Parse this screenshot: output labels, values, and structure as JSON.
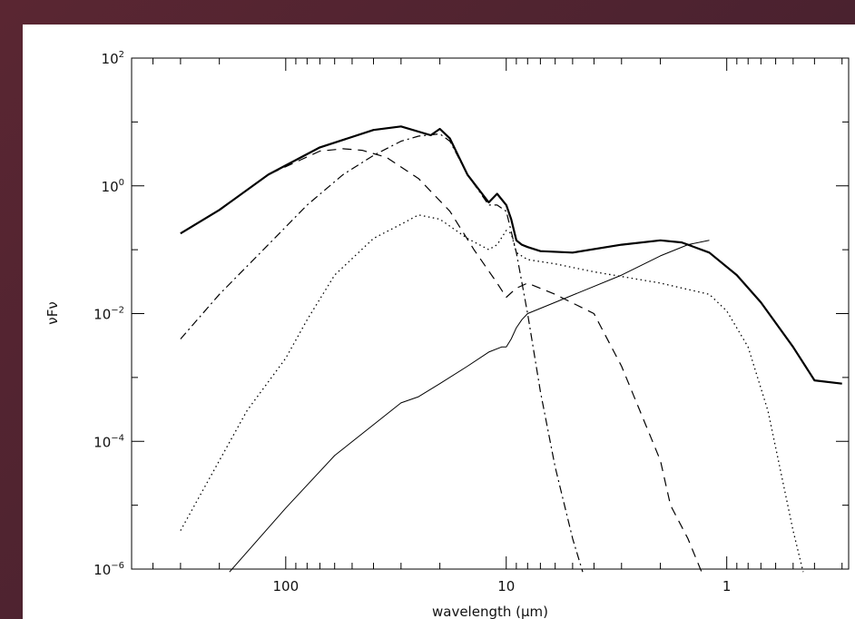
{
  "chart_data": {
    "type": "line",
    "xlabel": "wavelength (μm)",
    "ylabel": "νFν",
    "x_scale": "log",
    "y_scale": "log",
    "x_reversed": true,
    "xlim": [
      500,
      0.28
    ],
    "ylim": [
      1e-06,
      100
    ],
    "x_ticks": [
      {
        "value": 100,
        "label": "100"
      },
      {
        "value": 10,
        "label": "10"
      },
      {
        "value": 1,
        "label": "1"
      }
    ],
    "y_ticks": [
      {
        "value": 100,
        "base": "10",
        "exp": "2"
      },
      {
        "value": 1,
        "base": "10",
        "exp": "0"
      },
      {
        "value": 0.01,
        "base": "10",
        "exp": "−2"
      },
      {
        "value": 0.0001,
        "base": "10",
        "exp": "−4"
      },
      {
        "value": 1e-06,
        "base": "10",
        "exp": "−6"
      }
    ],
    "grid": false,
    "legend": "none",
    "series": [
      {
        "style": "solid-thick",
        "x": [
          300,
          200,
          120,
          70,
          40,
          30,
          22,
          20,
          18,
          15,
          12,
          11,
          10,
          9.5,
          9,
          8.5,
          8,
          7,
          5,
          3,
          2,
          1.6,
          1.2,
          0.9,
          0.7,
          0.5,
          0.4,
          0.3
        ],
        "y": [
          0.18,
          0.42,
          1.5,
          4,
          7.5,
          8.5,
          6.2,
          7.8,
          5.5,
          1.5,
          0.55,
          0.75,
          0.5,
          0.3,
          0.14,
          0.12,
          0.11,
          0.095,
          0.09,
          0.12,
          0.14,
          0.13,
          0.09,
          0.04,
          0.015,
          0.003,
          0.0009,
          0.0008
        ]
      },
      {
        "style": "dashed",
        "x": [
          300,
          200,
          120,
          70,
          55,
          45,
          35,
          25,
          18,
          14,
          11,
          10,
          9,
          8,
          6,
          4,
          3,
          2,
          1.8,
          1.5,
          1.3
        ],
        "y": [
          0.18,
          0.42,
          1.5,
          3.5,
          3.8,
          3.6,
          2.8,
          1.3,
          0.4,
          0.1,
          0.03,
          0.018,
          0.025,
          0.03,
          0.02,
          0.01,
          0.0015,
          5e-05,
          1e-05,
          3e-06,
          9e-07
        ]
      },
      {
        "style": "dash-dot",
        "x": [
          300,
          200,
          120,
          80,
          55,
          40,
          30,
          25,
          20,
          18,
          15,
          12,
          11,
          10,
          9,
          8,
          7,
          6,
          5,
          4.5
        ],
        "y": [
          0.004,
          0.02,
          0.12,
          0.5,
          1.5,
          3,
          5,
          6,
          6.5,
          5,
          1.5,
          0.5,
          0.5,
          0.4,
          0.09,
          0.01,
          0.0006,
          4e-05,
          3e-06,
          9e-07
        ]
      },
      {
        "style": "dotted",
        "x": [
          300,
          150,
          100,
          80,
          60,
          40,
          30,
          25,
          20,
          15,
          12,
          11,
          10,
          9.5,
          9,
          8,
          6,
          4,
          2,
          1.2,
          1,
          0.8,
          0.65,
          0.5,
          0.45
        ],
        "y": [
          4e-06,
          0.0003,
          0.002,
          0.008,
          0.04,
          0.15,
          0.25,
          0.35,
          0.3,
          0.15,
          0.1,
          0.12,
          0.2,
          0.18,
          0.09,
          0.07,
          0.06,
          0.045,
          0.03,
          0.02,
          0.011,
          0.003,
          0.0003,
          4e-06,
          9e-07
        ]
      },
      {
        "style": "solid-thin",
        "x": [
          180,
          100,
          60,
          30,
          25,
          20,
          15,
          12,
          10.5,
          10,
          9.5,
          9,
          8.5,
          8,
          6,
          3,
          2,
          1.5,
          1.2
        ],
        "y": [
          9e-07,
          9e-06,
          6e-05,
          0.0004,
          0.0005,
          0.0008,
          0.0015,
          0.0025,
          0.003,
          0.003,
          0.004,
          0.006,
          0.008,
          0.01,
          0.015,
          0.04,
          0.08,
          0.12,
          0.14
        ]
      }
    ]
  }
}
